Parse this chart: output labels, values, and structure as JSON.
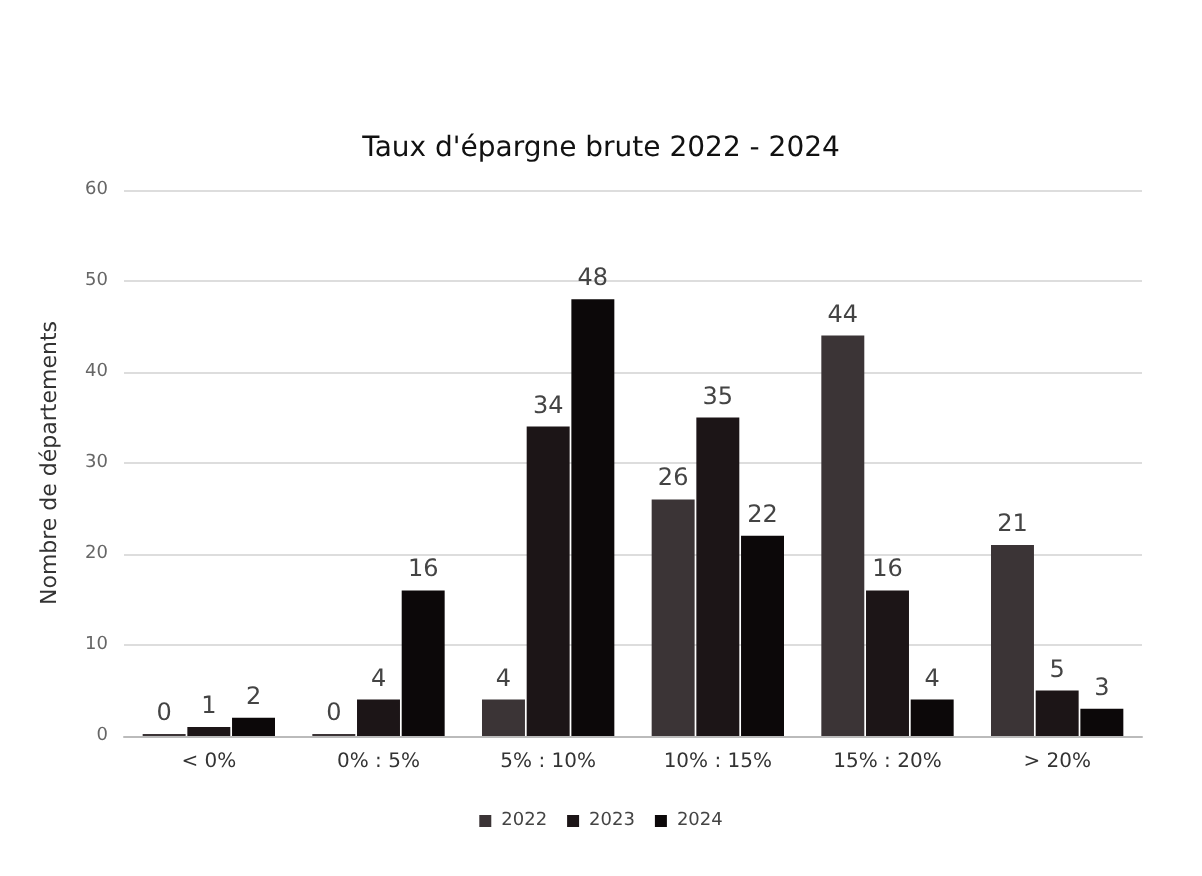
{
  "chart_data": {
    "type": "bar",
    "title": "Taux d'épargne brute 2022 - 2024",
    "ylabel": "Nombre de départements",
    "categories": [
      "< 0%",
      "0% : 5%",
      "5% : 10%",
      "10% : 15%",
      "15% : 20%",
      "> 20%"
    ],
    "series": [
      {
        "name": "2022",
        "color": "#3b3436",
        "values": [
          0,
          0,
          4,
          26,
          44,
          21
        ]
      },
      {
        "name": "2023",
        "color": "#1c1517",
        "values": [
          1,
          4,
          34,
          35,
          16,
          5
        ]
      },
      {
        "name": "2024",
        "color": "#0c0809",
        "values": [
          2,
          16,
          48,
          22,
          4,
          3
        ]
      }
    ],
    "ylim": [
      0,
      60
    ],
    "yticks": [
      0,
      10,
      20,
      30,
      40,
      50,
      60
    ],
    "grid": "y",
    "legend": "bottom",
    "data_labels": true
  }
}
